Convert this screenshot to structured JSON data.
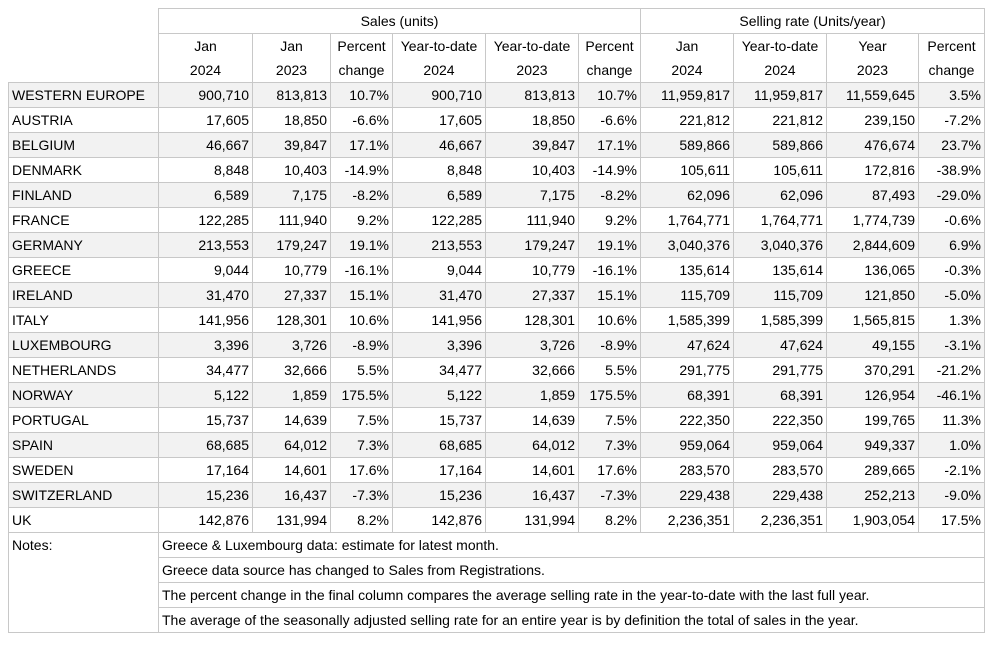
{
  "table": {
    "group_headers": [
      "Sales (units)",
      "Selling rate (Units/year)"
    ],
    "column_headers": [
      [
        "Jan",
        "2024"
      ],
      [
        "Jan",
        "2023"
      ],
      [
        "Percent",
        "change"
      ],
      [
        "Year-to-date",
        "2024"
      ],
      [
        "Year-to-date",
        "2023"
      ],
      [
        "Percent",
        "change"
      ],
      [
        "Jan",
        "2024"
      ],
      [
        "Year-to-date",
        "2024"
      ],
      [
        "Year",
        "2023"
      ],
      [
        "Percent",
        "change"
      ]
    ],
    "rows": [
      [
        "WESTERN EUROPE",
        "900,710",
        "813,813",
        "10.7%",
        "900,710",
        "813,813",
        "10.7%",
        "11,959,817",
        "11,959,817",
        "11,559,645",
        "3.5%"
      ],
      [
        "AUSTRIA",
        "17,605",
        "18,850",
        "-6.6%",
        "17,605",
        "18,850",
        "-6.6%",
        "221,812",
        "221,812",
        "239,150",
        "-7.2%"
      ],
      [
        "BELGIUM",
        "46,667",
        "39,847",
        "17.1%",
        "46,667",
        "39,847",
        "17.1%",
        "589,866",
        "589,866",
        "476,674",
        "23.7%"
      ],
      [
        "DENMARK",
        "8,848",
        "10,403",
        "-14.9%",
        "8,848",
        "10,403",
        "-14.9%",
        "105,611",
        "105,611",
        "172,816",
        "-38.9%"
      ],
      [
        "FINLAND",
        "6,589",
        "7,175",
        "-8.2%",
        "6,589",
        "7,175",
        "-8.2%",
        "62,096",
        "62,096",
        "87,493",
        "-29.0%"
      ],
      [
        "FRANCE",
        "122,285",
        "111,940",
        "9.2%",
        "122,285",
        "111,940",
        "9.2%",
        "1,764,771",
        "1,764,771",
        "1,774,739",
        "-0.6%"
      ],
      [
        "GERMANY",
        "213,553",
        "179,247",
        "19.1%",
        "213,553",
        "179,247",
        "19.1%",
        "3,040,376",
        "3,040,376",
        "2,844,609",
        "6.9%"
      ],
      [
        "GREECE",
        "9,044",
        "10,779",
        "-16.1%",
        "9,044",
        "10,779",
        "-16.1%",
        "135,614",
        "135,614",
        "136,065",
        "-0.3%"
      ],
      [
        "IRELAND",
        "31,470",
        "27,337",
        "15.1%",
        "31,470",
        "27,337",
        "15.1%",
        "115,709",
        "115,709",
        "121,850",
        "-5.0%"
      ],
      [
        "ITALY",
        "141,956",
        "128,301",
        "10.6%",
        "141,956",
        "128,301",
        "10.6%",
        "1,585,399",
        "1,585,399",
        "1,565,815",
        "1.3%"
      ],
      [
        "LUXEMBOURG",
        "3,396",
        "3,726",
        "-8.9%",
        "3,396",
        "3,726",
        "-8.9%",
        "47,624",
        "47,624",
        "49,155",
        "-3.1%"
      ],
      [
        "NETHERLANDS",
        "34,477",
        "32,666",
        "5.5%",
        "34,477",
        "32,666",
        "5.5%",
        "291,775",
        "291,775",
        "370,291",
        "-21.2%"
      ],
      [
        "NORWAY",
        "5,122",
        "1,859",
        "175.5%",
        "5,122",
        "1,859",
        "175.5%",
        "68,391",
        "68,391",
        "126,954",
        "-46.1%"
      ],
      [
        "PORTUGAL",
        "15,737",
        "14,639",
        "7.5%",
        "15,737",
        "14,639",
        "7.5%",
        "222,350",
        "222,350",
        "199,765",
        "11.3%"
      ],
      [
        "SPAIN",
        "68,685",
        "64,012",
        "7.3%",
        "68,685",
        "64,012",
        "7.3%",
        "959,064",
        "959,064",
        "949,337",
        "1.0%"
      ],
      [
        "SWEDEN",
        "17,164",
        "14,601",
        "17.6%",
        "17,164",
        "14,601",
        "17.6%",
        "283,570",
        "283,570",
        "289,665",
        "-2.1%"
      ],
      [
        "SWITZERLAND",
        "15,236",
        "16,437",
        "-7.3%",
        "15,236",
        "16,437",
        "-7.3%",
        "229,438",
        "229,438",
        "252,213",
        "-9.0%"
      ],
      [
        "UK",
        "142,876",
        "131,994",
        "8.2%",
        "142,876",
        "131,994",
        "8.2%",
        "2,236,351",
        "2,236,351",
        "1,903,054",
        "17.5%"
      ]
    ],
    "notes_label": "Notes:",
    "notes": [
      "Greece & Luxembourg data: estimate for latest month.",
      "Greece data source has changed to Sales from Registrations.",
      "The percent change in the final column compares the average selling rate in the year-to-date with the last full year.",
      "The average of the seasonally adjusted selling rate for an entire year is by definition the total of sales in the year."
    ]
  }
}
